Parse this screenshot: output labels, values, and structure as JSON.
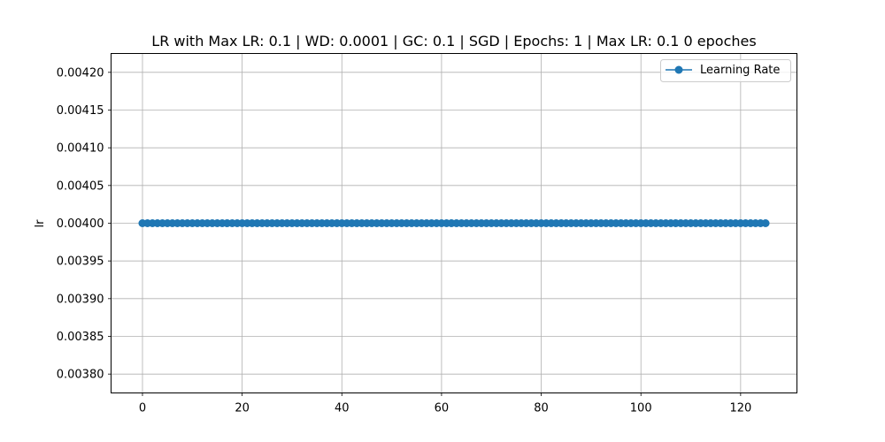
{
  "chart_data": {
    "type": "line",
    "title": "LR with Max LR: 0.1 | WD: 0.0001 | GC: 0.1 | SGD | Epochs: 1 | Max LR: 0.1 0 epoches",
    "xlabel": "",
    "ylabel": "lr",
    "xlim": [
      -6.3,
      131.3
    ],
    "ylim": [
      0.003775,
      0.004225
    ],
    "x_ticks": [
      0,
      20,
      40,
      60,
      80,
      100,
      120
    ],
    "x_tick_labels": [
      "0",
      "20",
      "40",
      "60",
      "80",
      "100",
      "120"
    ],
    "y_ticks": [
      0.0038,
      0.00385,
      0.0039,
      0.00395,
      0.004,
      0.00405,
      0.0041,
      0.00415,
      0.0042
    ],
    "y_tick_labels": [
      "0.00380",
      "0.00385",
      "0.00390",
      "0.00395",
      "0.00400",
      "0.00405",
      "0.00410",
      "0.00415",
      "0.00420"
    ],
    "grid": true,
    "legend_position": "top-right",
    "x_range": [
      0,
      125
    ],
    "series": [
      {
        "name": "Learning Rate",
        "color": "#1f77b4",
        "marker": "circle",
        "constant_value": 0.004
      }
    ]
  }
}
